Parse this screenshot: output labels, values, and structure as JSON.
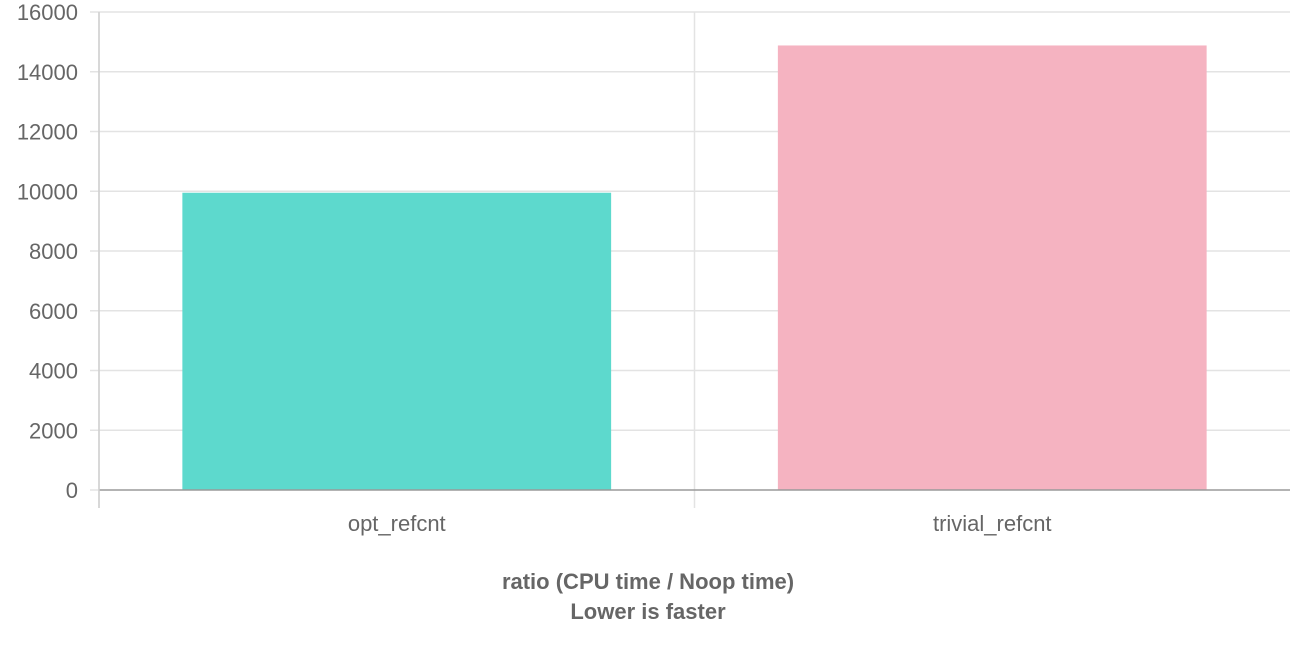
{
  "chart_data": {
    "type": "bar",
    "categories": [
      "opt_refcnt",
      "trivial_refcnt"
    ],
    "series": [
      {
        "values": [
          9950,
          14880
        ],
        "colors": [
          "#5dd9cd",
          "#f5b3c1"
        ]
      }
    ],
    "yticks": [
      "0",
      "2000",
      "4000",
      "6000",
      "8000",
      "10000",
      "12000",
      "14000",
      "16000"
    ],
    "ylim": [
      0,
      16000
    ],
    "grid": true,
    "legend": "none",
    "footer_lines": [
      "ratio (CPU time / Noop time)",
      "Lower is faster"
    ]
  }
}
